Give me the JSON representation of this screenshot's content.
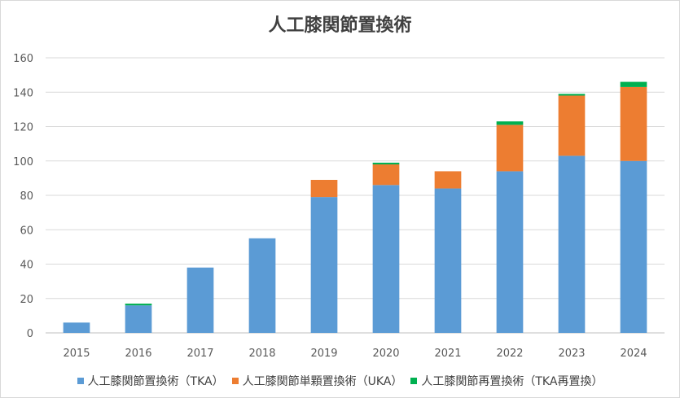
{
  "chart_data": {
    "type": "bar",
    "stacked": true,
    "title": "人工膝関節置換術",
    "xlabel": "",
    "ylabel": "",
    "categories": [
      "2015",
      "2016",
      "2017",
      "2018",
      "2019",
      "2020",
      "2021",
      "2022",
      "2023",
      "2024"
    ],
    "ylim": [
      0,
      160
    ],
    "yticks": [
      0,
      20,
      40,
      60,
      80,
      100,
      120,
      140,
      160
    ],
    "grid": true,
    "legend_position": "bottom",
    "series": [
      {
        "name": "人工膝関節置換術（TKA）",
        "color": "#5b9bd5",
        "values": [
          6,
          16,
          38,
          55,
          79,
          86,
          84,
          94,
          103,
          100
        ]
      },
      {
        "name": "人工膝関節単顆置換術（UKA）",
        "color": "#ed7d31",
        "values": [
          0,
          0,
          0,
          0,
          10,
          12,
          10,
          27,
          35,
          43
        ]
      },
      {
        "name": "人工膝関節再置換術（TKA再置換）",
        "color": "#00b050",
        "values": [
          0,
          1,
          0,
          0,
          0,
          1,
          0,
          2,
          1,
          3
        ]
      }
    ]
  }
}
